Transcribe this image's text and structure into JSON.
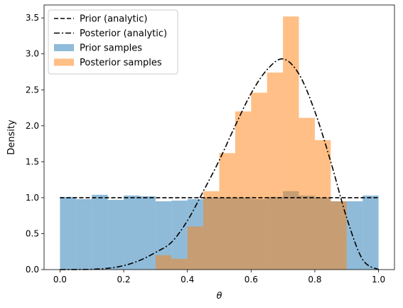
{
  "chart_data": {
    "type": "histogram",
    "title": "",
    "xlabel": "θ",
    "ylabel": "Density",
    "xlim": [
      -0.05,
      1.05
    ],
    "ylim": [
      0,
      3.68
    ],
    "xticks": [
      "0.0",
      "0.2",
      "0.4",
      "0.6",
      "0.8",
      "1.0"
    ],
    "xtick_values": [
      0.0,
      0.2,
      0.4,
      0.6,
      0.8,
      1.0
    ],
    "yticks": [
      "0.0",
      "0.5",
      "1.0",
      "1.5",
      "2.0",
      "2.5",
      "3.0",
      "3.5"
    ],
    "ytick_values": [
      0.0,
      0.5,
      1.0,
      1.5,
      2.0,
      2.5,
      3.0,
      3.5
    ],
    "grid": false,
    "legend_position": "upper-left",
    "bin_edges": [
      0.0,
      0.05,
      0.1,
      0.15,
      0.2,
      0.25,
      0.3,
      0.35,
      0.4,
      0.45,
      0.5,
      0.55,
      0.6,
      0.65,
      0.7,
      0.75,
      0.8,
      0.85,
      0.9,
      0.95,
      1.0
    ],
    "series": [
      {
        "name": "Prior samples",
        "kind": "hist",
        "color": "#1f77b4",
        "alpha": 0.5,
        "values": [
          1.01,
          0.98,
          1.04,
          0.97,
          1.03,
          1.02,
          0.95,
          0.96,
          0.98,
          1.0,
          1.0,
          1.0,
          0.98,
          1.01,
          1.09,
          1.03,
          1.0,
          0.95,
          0.95,
          1.03
        ]
      },
      {
        "name": "Posterior samples",
        "kind": "hist",
        "color": "#ff7f0e",
        "alpha": 0.5,
        "values": [
          0.0,
          0.0,
          0.0,
          0.0,
          0.0,
          0.0,
          0.2,
          0.15,
          0.6,
          1.09,
          1.62,
          2.2,
          2.46,
          2.74,
          3.52,
          2.11,
          1.8,
          0.95,
          0.0,
          0.0
        ]
      },
      {
        "name": "Prior (analytic)",
        "kind": "line",
        "style": "dashed",
        "color": "#000000",
        "x": [
          0.0,
          1.0
        ],
        "y": [
          1.0,
          1.0
        ]
      },
      {
        "name": "Posterior (analytic)",
        "kind": "line",
        "style": "dashdot",
        "color": "#000000",
        "x": [
          0.0,
          0.05,
          0.1,
          0.15,
          0.2,
          0.25,
          0.3,
          0.35,
          0.4,
          0.45,
          0.5,
          0.55,
          0.6,
          0.65,
          0.7,
          0.75,
          0.8,
          0.85,
          0.9,
          0.95,
          1.0
        ],
        "y": [
          0.0,
          0.001,
          0.004,
          0.018,
          0.055,
          0.127,
          0.239,
          0.38,
          0.68,
          1.09,
          1.52,
          2.0,
          2.45,
          2.78,
          2.93,
          2.72,
          2.2,
          1.5,
          0.72,
          0.14,
          0.0
        ]
      }
    ],
    "legend": [
      "Prior (analytic)",
      "Posterior (analytic)",
      "Prior samples",
      "Posterior samples"
    ]
  }
}
